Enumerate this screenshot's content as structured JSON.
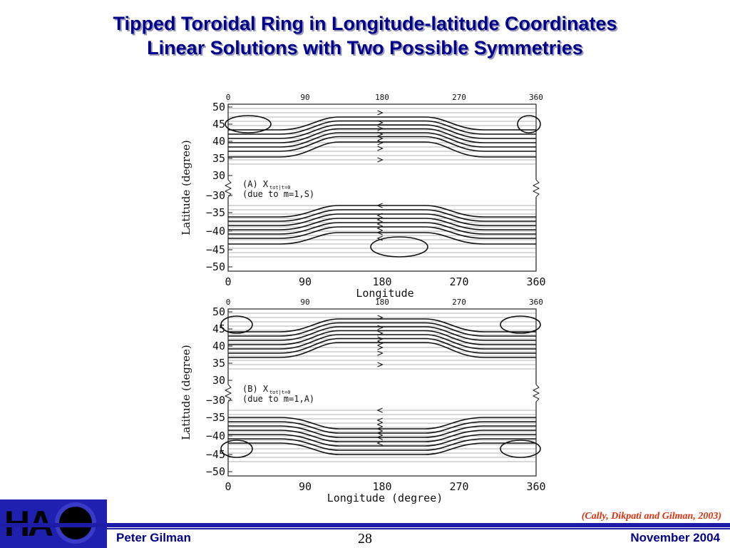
{
  "slide": {
    "title_line1": "Tipped Toroidal Ring in Longitude-latitude Coordinates",
    "title_line2": "Linear Solutions with Two Possible Symmetries"
  },
  "figure": {
    "panels": [
      {
        "id": "A",
        "top_ticks": [
          "0",
          "90",
          "180",
          "270",
          "360"
        ],
        "bottom_ticks": [
          "0",
          "90",
          "180",
          "270",
          "360"
        ],
        "upper_lat_ticks": [
          "50",
          "45",
          "40",
          "35",
          "30"
        ],
        "lower_lat_ticks": [
          "−30",
          "−35",
          "−40",
          "−45",
          "−50"
        ],
        "ylabel": "Latitude (degree)",
        "xlabel": "Longitude",
        "annotation_line1": "(A) X",
        "annotation_sub": "tot|t=0",
        "annotation_line2": "(due to m=1,S)"
      },
      {
        "id": "B",
        "top_ticks": [
          "0",
          "90",
          "180",
          "270",
          "360"
        ],
        "bottom_ticks": [
          "0",
          "90",
          "180",
          "270",
          "360"
        ],
        "upper_lat_ticks": [
          "50",
          "45",
          "40",
          "35",
          "30"
        ],
        "lower_lat_ticks": [
          "−30",
          "−35",
          "−40",
          "−45",
          "−50"
        ],
        "ylabel": "Latitude (degree)",
        "xlabel": "Longitude (degree)",
        "annotation_line1": "(B) X",
        "annotation_sub": "tot|t=0",
        "annotation_line2": "(due to m=1,A)"
      }
    ]
  },
  "footer": {
    "logo": "HA",
    "citation": "(Cally, Dikpati and Gilman, 2003)",
    "author": "Peter Gilman",
    "page_number": "28",
    "date": "November 2004"
  },
  "colors": {
    "title": "#00008b",
    "footer_bar": "#1c1ca6",
    "citation": "#e03010"
  }
}
